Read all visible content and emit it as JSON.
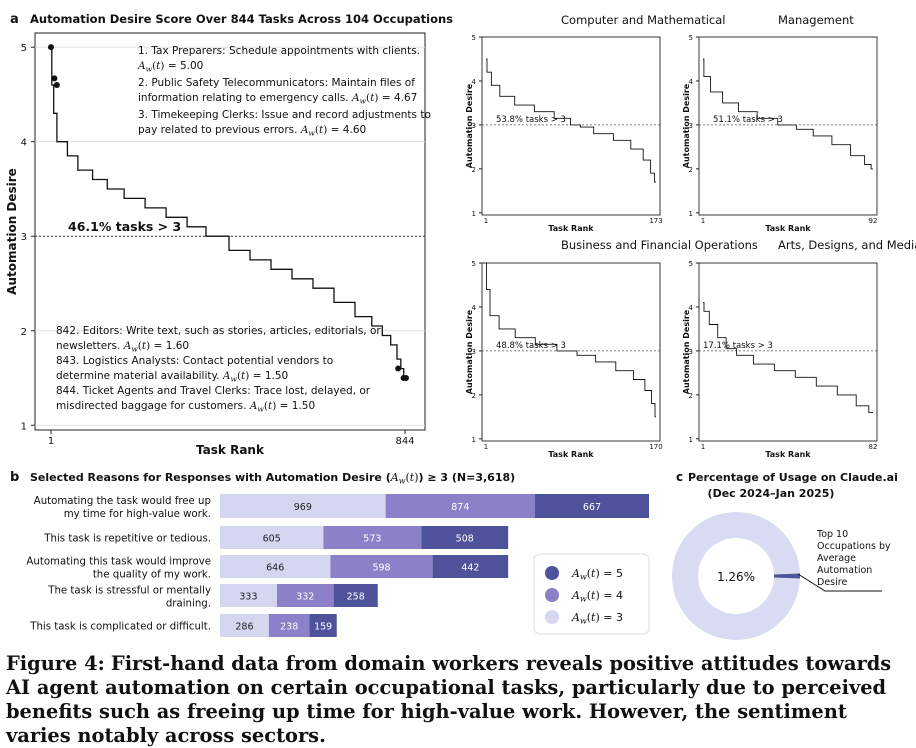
{
  "panel_a": {
    "letter": "a",
    "title": "Automation Desire Score Over 844 Tasks Across 104 Occupations",
    "ylabel": "Automation Desire",
    "xlabel": "Task Rank",
    "x_ticks": [
      "1",
      "844"
    ],
    "y_ticks": [
      "1",
      "2",
      "3",
      "4",
      "5"
    ],
    "threshold_label": "46.1% tasks > 3",
    "top_notes": [
      {
        "l1": "1. Tax Preparers: Schedule appointments with clients.",
        "l2": "A_w(t) = 5.00"
      },
      {
        "l1": "2. Public Safety Telecommunicators: Maintain files of",
        "l2": "information relating to emergency calls.  A_w(t) = 4.67"
      },
      {
        "l1": "3. Timekeeping Clerks: Issue and record adjustments to",
        "l2": "pay related to previous errors.  A_w(t) = 4.60"
      }
    ],
    "bottom_notes": [
      {
        "l1": "842. Editors: Write text, such as stories, articles, editorials, or",
        "l2": "newsletters.  A_w(t) = 1.60"
      },
      {
        "l1": "843. Logistics Analysts: Contact potential vendors to",
        "l2": "determine material availability.  A_w(t) = 1.50"
      },
      {
        "l1": "844. Ticket Agents and Travel Clerks: Trace lost, delayed, or",
        "l2": "misdirected baggage for customers.  A_w(t) = 1.50"
      }
    ]
  },
  "sub_panels": {
    "ylabel": "Automation Desire",
    "xlabel": "Task Rank",
    "y_ticks": [
      "1",
      "2",
      "3",
      "4",
      "5"
    ],
    "x_start": "1",
    "items": [
      {
        "title": "Computer and Mathematical",
        "n": "173",
        "label": "53.8% tasks > 3"
      },
      {
        "title": "Management",
        "n": "92",
        "label": "51.1% tasks > 3"
      },
      {
        "title": "Business and Financial Operations",
        "n": "170",
        "label": "48.8% tasks > 3"
      },
      {
        "title": "Arts, Designs, and Media",
        "n": "82",
        "label": "17.1% tasks > 3"
      }
    ]
  },
  "panel_b": {
    "letter": "b",
    "title_pre": "Selected Reasons for Responses with Automation Desire (",
    "title_math": "A_w(t)",
    "title_post": ") ≥ 3 (N=3,618)",
    "legend": [
      "A_w(t) = 5",
      "A_w(t) = 4",
      "A_w(t) = 3"
    ]
  },
  "panel_c": {
    "letter": "c",
    "title_l1": "Percentage of Usage on Claude.ai",
    "title_l2": "(Dec 2024–Jan 2025)",
    "value_label": "1.26%",
    "annotation": [
      "Top 10",
      "Occupations by",
      "Average",
      "Automation",
      "Desire"
    ]
  },
  "caption": {
    "label": "Figure 4:",
    "text": "First-hand data from domain workers reveals positive attitudes towards AI agent automation on certain occupational tasks, particularly due to perceived benefits such as freeing up time for high-value work. However, the sentiment varies notably across sectors."
  },
  "colors": {
    "score3": "#d5d7f1",
    "score4": "#8a81c8",
    "score5": "#4d529b",
    "donut_bg": "#d9dbf3",
    "donut_slice": "#4d529b"
  },
  "chart_data": [
    {
      "type": "line",
      "title": "Automation Desire Score Over 844 Tasks Across 104 Occupations",
      "xlabel": "Task Rank",
      "ylabel": "Automation Desire",
      "xlim": [
        1,
        844
      ],
      "ylim": [
        1,
        5
      ],
      "x": [
        1,
        5,
        10,
        20,
        30,
        50,
        80,
        120,
        150,
        200,
        250,
        300,
        350,
        390,
        400,
        450,
        500,
        550,
        600,
        650,
        700,
        750,
        780,
        800,
        820,
        830,
        838,
        844
      ],
      "y": [
        5.0,
        4.6,
        4.3,
        4.0,
        4.0,
        3.85,
        3.7,
        3.6,
        3.5,
        3.4,
        3.3,
        3.2,
        3.1,
        3.0,
        3.0,
        2.85,
        2.75,
        2.65,
        2.55,
        2.45,
        2.3,
        2.15,
        2.05,
        1.95,
        1.85,
        1.7,
        1.6,
        1.5
      ],
      "highlight_points": [
        {
          "x": 1,
          "y": 5.0
        },
        {
          "x": 2,
          "y": 4.67
        },
        {
          "x": 3,
          "y": 4.6
        },
        {
          "x": 842,
          "y": 1.6
        },
        {
          "x": 843,
          "y": 1.5
        },
        {
          "x": 844,
          "y": 1.5
        }
      ],
      "threshold": 3,
      "annotation": "46.1% tasks > 3"
    },
    {
      "type": "line",
      "title": "Computer and Mathematical",
      "xlabel": "Task Rank",
      "ylabel": "Automation Desire",
      "xlim": [
        1,
        173
      ],
      "ylim": [
        1,
        5
      ],
      "threshold": 3,
      "annotation": "53.8% tasks > 3",
      "x": [
        1,
        3,
        10,
        20,
        40,
        60,
        80,
        93,
        100,
        120,
        140,
        155,
        165,
        170,
        173
      ],
      "y": [
        4.5,
        4.2,
        3.9,
        3.65,
        3.45,
        3.3,
        3.15,
        3.0,
        2.95,
        2.8,
        2.65,
        2.45,
        2.2,
        1.9,
        1.7
      ]
    },
    {
      "type": "line",
      "title": "Management",
      "xlabel": "Task Rank",
      "ylabel": "Automation Desire",
      "xlim": [
        1,
        92
      ],
      "ylim": [
        1,
        5
      ],
      "threshold": 3,
      "annotation": "51.1% tasks > 3",
      "x": [
        1,
        2,
        8,
        15,
        25,
        35,
        47,
        55,
        65,
        75,
        85,
        90,
        92
      ],
      "y": [
        4.5,
        4.1,
        3.75,
        3.5,
        3.3,
        3.15,
        3.0,
        2.9,
        2.75,
        2.55,
        2.3,
        2.1,
        2.0
      ]
    },
    {
      "type": "line",
      "title": "Business and Financial Operations",
      "xlabel": "Task Rank",
      "ylabel": "Automation Desire",
      "xlim": [
        1,
        170
      ],
      "ylim": [
        1,
        5
      ],
      "threshold": 3,
      "annotation": "48.8% tasks > 3",
      "x": [
        1,
        2,
        8,
        20,
        40,
        60,
        83,
        100,
        120,
        140,
        155,
        163,
        168,
        170
      ],
      "y": [
        5.0,
        4.4,
        3.8,
        3.5,
        3.3,
        3.15,
        3.0,
        2.9,
        2.75,
        2.55,
        2.35,
        2.1,
        1.8,
        1.5
      ]
    },
    {
      "type": "line",
      "title": "Arts, Designs, and Media",
      "xlabel": "Task Rank",
      "ylabel": "Automation Desire",
      "xlim": [
        1,
        82
      ],
      "ylim": [
        1,
        5
      ],
      "threshold": 3,
      "annotation": "17.1% tasks > 3",
      "x": [
        1,
        2,
        6,
        10,
        14,
        20,
        30,
        40,
        50,
        60,
        70,
        78,
        82
      ],
      "y": [
        4.1,
        3.9,
        3.6,
        3.3,
        3.05,
        2.9,
        2.7,
        2.55,
        2.4,
        2.2,
        2.0,
        1.75,
        1.6
      ]
    },
    {
      "type": "bar",
      "title": "Selected Reasons for Responses with Automation Desire (A_w(t)) ≥ 3 (N=3,618)",
      "orientation": "horizontal-stacked",
      "categories": [
        [
          "Automating the task would free up",
          "my time for high-value work."
        ],
        [
          "This task is repetitive or tedious."
        ],
        [
          "Automating this task would improve",
          "the quality of my work."
        ],
        [
          "The task is stressful or mentally",
          "draining."
        ],
        [
          "This task is complicated or difficult."
        ]
      ],
      "series": [
        {
          "name": "A_w(t) = 3",
          "values": [
            969,
            605,
            646,
            333,
            286
          ]
        },
        {
          "name": "A_w(t) = 4",
          "values": [
            874,
            573,
            598,
            332,
            238
          ]
        },
        {
          "name": "A_w(t) = 5",
          "values": [
            667,
            508,
            442,
            258,
            159
          ]
        }
      ]
    },
    {
      "type": "pie",
      "title": "Percentage of Usage on Claude.ai (Dec 2024–Jan 2025)",
      "values": [
        1.26,
        98.74
      ],
      "labels": [
        "Top 10 Occupations by Average Automation Desire",
        ""
      ]
    }
  ]
}
